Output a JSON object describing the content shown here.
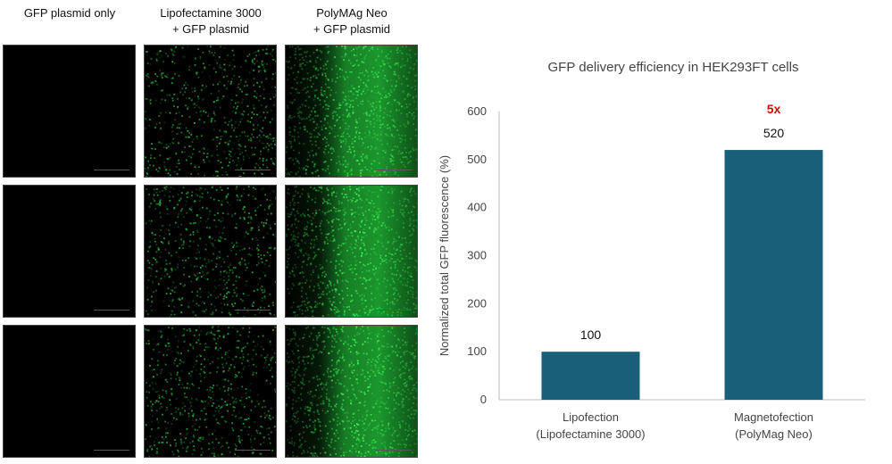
{
  "panel": {
    "columns": [
      {
        "label": "GFP plasmid only",
        "intensity": 0.0
      },
      {
        "label": "Lipofectamine 3000\n+ GFP plasmid",
        "intensity": 0.45
      },
      {
        "label": "PolyMAg Neo\n+ GFP plasmid",
        "intensity": 1.0
      }
    ],
    "rows": 3,
    "colors": {
      "fluorescence": "#2ecc40",
      "background": "#000000"
    }
  },
  "chart_data": {
    "type": "bar",
    "title": "GFP delivery efficiency in HEK293FT cells",
    "ylabel": "Normalized total GFP fluorescence (%)",
    "xlabel": "",
    "categories": [
      "Lipofection\n(Lipofectamine 3000)",
      "Magnetofection\n(PolyMag Neo)"
    ],
    "values": [
      100,
      520
    ],
    "data_labels": [
      "100",
      "520"
    ],
    "ylim": [
      0,
      600
    ],
    "yticks": [
      0,
      100,
      200,
      300,
      400,
      500,
      600
    ],
    "grid": false,
    "legend": "none",
    "bar_color": "#1a5f7a",
    "annotation": {
      "text": "5x",
      "category_index": 1,
      "color": "#e00000"
    }
  }
}
